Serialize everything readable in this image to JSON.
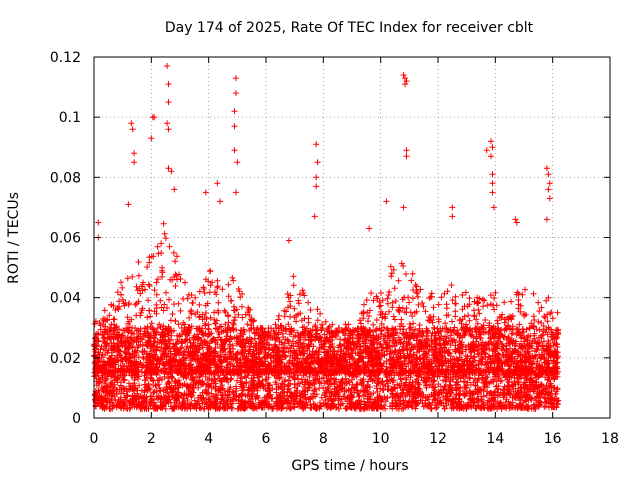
{
  "chart_data": {
    "type": "scatter",
    "title": "Day 174 of 2025, Rate Of TEC Index for receiver cblt",
    "xlabel": "GPS time / hours",
    "ylabel": "ROTI / TECUs",
    "xlim": [
      0,
      18
    ],
    "ylim": [
      0,
      0.12
    ],
    "x_ticks": [
      0,
      2,
      4,
      6,
      8,
      10,
      12,
      14,
      16,
      18
    ],
    "x_tick_labels": [
      "0",
      "2",
      "4",
      "6",
      "8",
      "10",
      "12",
      "14",
      "16",
      "18"
    ],
    "y_ticks": [
      0,
      0.02,
      0.04,
      0.06,
      0.08,
      0.1,
      0.12
    ],
    "y_tick_labels": [
      "0",
      "0.02",
      "0.04",
      "0.06",
      "0.08",
      "0.1",
      "0.12"
    ],
    "grid": true,
    "marker": "+",
    "marker_color": "#ff0000",
    "series": [
      {
        "name": "ROTI",
        "x_range_observed": [
          0,
          16.2
        ],
        "bulk_range": [
          0.005,
          0.03
        ],
        "notable_points": [
          {
            "x": 0.15,
            "y": 0.065
          },
          {
            "x": 0.15,
            "y": 0.06
          },
          {
            "x": 1.3,
            "y": 0.098
          },
          {
            "x": 1.35,
            "y": 0.096
          },
          {
            "x": 1.4,
            "y": 0.088
          },
          {
            "x": 1.4,
            "y": 0.085
          },
          {
            "x": 1.2,
            "y": 0.071
          },
          {
            "x": 2.05,
            "y": 0.1
          },
          {
            "x": 2.1,
            "y": 0.1
          },
          {
            "x": 2.0,
            "y": 0.093
          },
          {
            "x": 2.55,
            "y": 0.117
          },
          {
            "x": 2.6,
            "y": 0.111
          },
          {
            "x": 2.6,
            "y": 0.105
          },
          {
            "x": 2.55,
            "y": 0.098
          },
          {
            "x": 2.6,
            "y": 0.096
          },
          {
            "x": 2.6,
            "y": 0.083
          },
          {
            "x": 2.7,
            "y": 0.082
          },
          {
            "x": 2.8,
            "y": 0.076
          },
          {
            "x": 3.9,
            "y": 0.075
          },
          {
            "x": 4.3,
            "y": 0.078
          },
          {
            "x": 4.4,
            "y": 0.072
          },
          {
            "x": 4.95,
            "y": 0.113
          },
          {
            "x": 4.95,
            "y": 0.108
          },
          {
            "x": 4.9,
            "y": 0.102
          },
          {
            "x": 4.9,
            "y": 0.097
          },
          {
            "x": 4.9,
            "y": 0.089
          },
          {
            "x": 5.0,
            "y": 0.085
          },
          {
            "x": 4.95,
            "y": 0.075
          },
          {
            "x": 6.8,
            "y": 0.059
          },
          {
            "x": 7.75,
            "y": 0.091
          },
          {
            "x": 7.8,
            "y": 0.085
          },
          {
            "x": 7.75,
            "y": 0.08
          },
          {
            "x": 7.75,
            "y": 0.077
          },
          {
            "x": 7.7,
            "y": 0.067
          },
          {
            "x": 9.6,
            "y": 0.063
          },
          {
            "x": 10.2,
            "y": 0.072
          },
          {
            "x": 10.8,
            "y": 0.114
          },
          {
            "x": 10.85,
            "y": 0.113
          },
          {
            "x": 10.9,
            "y": 0.112
          },
          {
            "x": 10.85,
            "y": 0.111
          },
          {
            "x": 10.9,
            "y": 0.089
          },
          {
            "x": 10.9,
            "y": 0.087
          },
          {
            "x": 10.8,
            "y": 0.07
          },
          {
            "x": 12.5,
            "y": 0.07
          },
          {
            "x": 12.5,
            "y": 0.067
          },
          {
            "x": 13.7,
            "y": 0.089
          },
          {
            "x": 13.85,
            "y": 0.092
          },
          {
            "x": 13.9,
            "y": 0.09
          },
          {
            "x": 13.85,
            "y": 0.087
          },
          {
            "x": 13.9,
            "y": 0.081
          },
          {
            "x": 13.9,
            "y": 0.078
          },
          {
            "x": 13.9,
            "y": 0.075
          },
          {
            "x": 13.95,
            "y": 0.07
          },
          {
            "x": 14.7,
            "y": 0.066
          },
          {
            "x": 14.75,
            "y": 0.065
          },
          {
            "x": 15.8,
            "y": 0.083
          },
          {
            "x": 15.85,
            "y": 0.081
          },
          {
            "x": 15.9,
            "y": 0.078
          },
          {
            "x": 15.85,
            "y": 0.076
          },
          {
            "x": 15.9,
            "y": 0.073
          },
          {
            "x": 15.8,
            "y": 0.066
          }
        ],
        "density_envelope": [
          {
            "x": 0.0,
            "max": 0.032
          },
          {
            "x": 0.5,
            "max": 0.038
          },
          {
            "x": 1.0,
            "max": 0.047
          },
          {
            "x": 1.5,
            "max": 0.052
          },
          {
            "x": 2.0,
            "max": 0.062
          },
          {
            "x": 2.5,
            "max": 0.068
          },
          {
            "x": 3.0,
            "max": 0.05
          },
          {
            "x": 3.5,
            "max": 0.04
          },
          {
            "x": 4.0,
            "max": 0.05
          },
          {
            "x": 4.5,
            "max": 0.044
          },
          {
            "x": 5.0,
            "max": 0.048
          },
          {
            "x": 5.5,
            "max": 0.035
          },
          {
            "x": 6.0,
            "max": 0.03
          },
          {
            "x": 6.5,
            "max": 0.035
          },
          {
            "x": 7.0,
            "max": 0.05
          },
          {
            "x": 7.5,
            "max": 0.038
          },
          {
            "x": 8.0,
            "max": 0.035
          },
          {
            "x": 8.5,
            "max": 0.03
          },
          {
            "x": 9.0,
            "max": 0.033
          },
          {
            "x": 9.5,
            "max": 0.04
          },
          {
            "x": 10.0,
            "max": 0.045
          },
          {
            "x": 10.5,
            "max": 0.055
          },
          {
            "x": 11.0,
            "max": 0.05
          },
          {
            "x": 11.5,
            "max": 0.045
          },
          {
            "x": 12.0,
            "max": 0.04
          },
          {
            "x": 12.5,
            "max": 0.048
          },
          {
            "x": 13.0,
            "max": 0.042
          },
          {
            "x": 13.5,
            "max": 0.04
          },
          {
            "x": 14.0,
            "max": 0.042
          },
          {
            "x": 14.5,
            "max": 0.04
          },
          {
            "x": 15.0,
            "max": 0.045
          },
          {
            "x": 15.5,
            "max": 0.04
          },
          {
            "x": 16.0,
            "max": 0.04
          },
          {
            "x": 16.2,
            "max": 0.035
          }
        ]
      }
    ]
  }
}
